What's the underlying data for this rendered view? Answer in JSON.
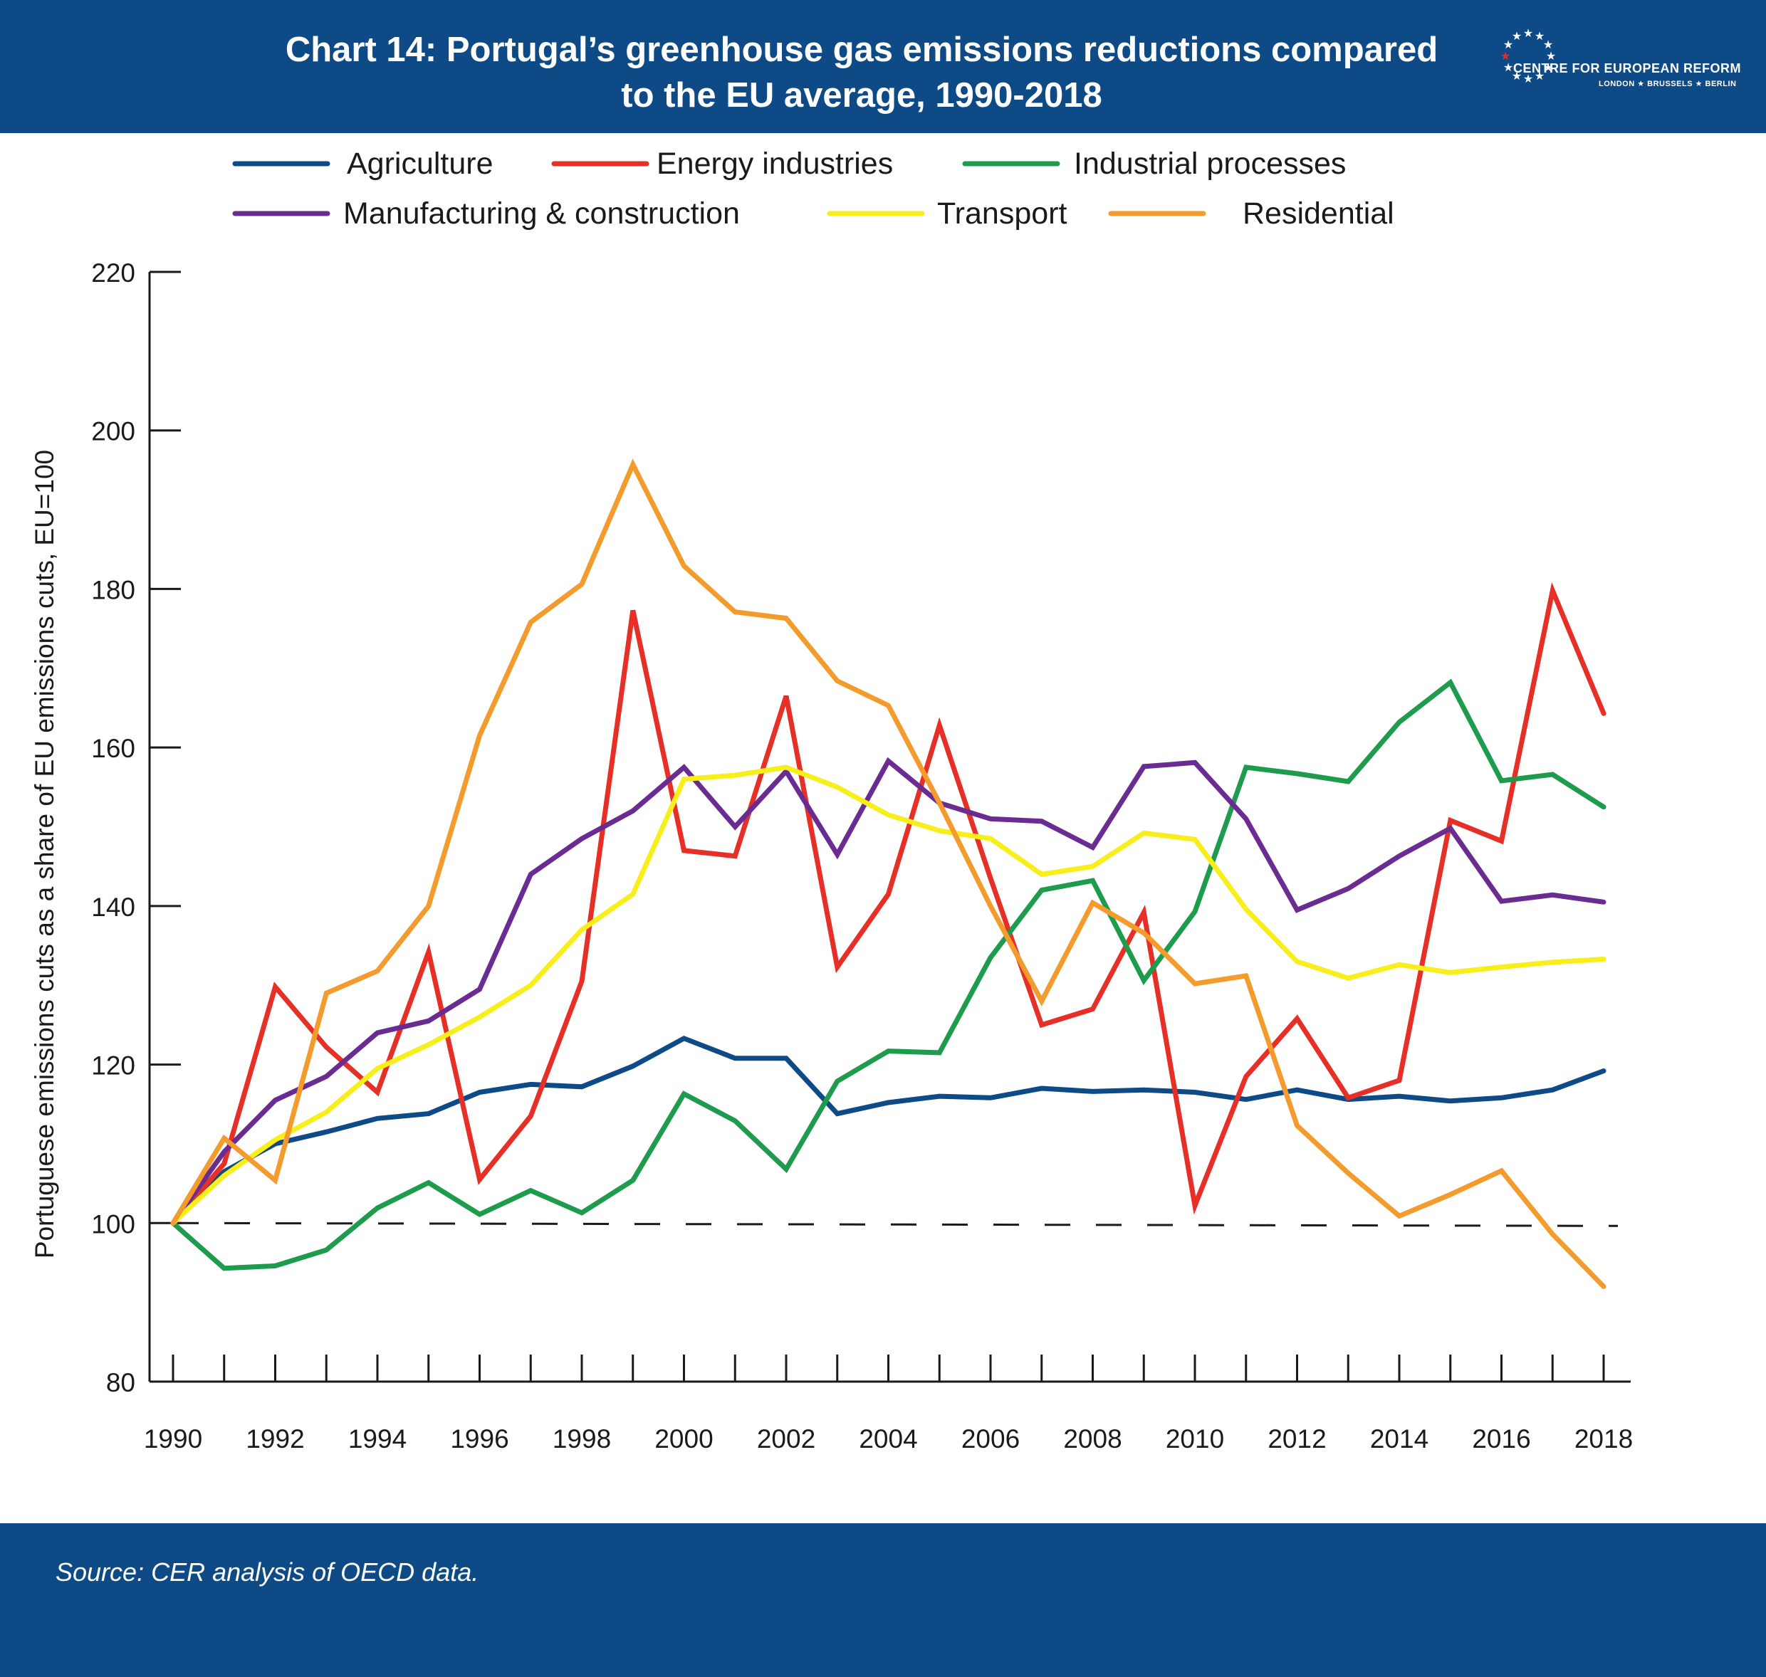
{
  "header": {
    "title_line1": "Chart 14: Portugal’s greenhouse gas emissions reductions compared",
    "title_line2": "to the EU average, 1990-2018",
    "logo_name": "CENTRE FOR EUROPEAN REFORM",
    "logo_cities": "LONDON ★ BRUSSELS ★ BERLIN",
    "color": "#0e4a86"
  },
  "footer": {
    "source": "Source: CER analysis of OECD data."
  },
  "chart_data": {
    "type": "line",
    "title": "Chart 14: Portugal’s greenhouse gas emissions reductions compared to the EU average, 1990-2018",
    "xlabel": "",
    "ylabel": "Portuguese emissions cuts as a share of EU emissions cuts, EU=100",
    "xlim": [
      1990,
      2018
    ],
    "ylim": [
      80,
      220
    ],
    "yticks": [
      80,
      100,
      120,
      140,
      160,
      180,
      200,
      220
    ],
    "xticks": [
      1990,
      1992,
      1994,
      1996,
      1998,
      2000,
      2002,
      2004,
      2006,
      2008,
      2010,
      2012,
      2014,
      2016,
      2018
    ],
    "grid": false,
    "legend_position": "top",
    "reference_line": {
      "y": 100,
      "style": "dashed"
    },
    "x": [
      1990,
      1991,
      1992,
      1993,
      1994,
      1995,
      1996,
      1997,
      1998,
      1999,
      2000,
      2001,
      2002,
      2003,
      2004,
      2005,
      2006,
      2007,
      2008,
      2009,
      2010,
      2011,
      2012,
      2013,
      2014,
      2015,
      2016,
      2017,
      2018
    ],
    "series": [
      {
        "name": "Agriculture",
        "color": "#0e4a86",
        "values": [
          100,
          106.5,
          110,
          111.5,
          113.2,
          113.8,
          116.5,
          117.5,
          117.2,
          119.8,
          123.3,
          120.8,
          120.8,
          113.8,
          115.2,
          116,
          115.8,
          117,
          116.6,
          116.8,
          116.5,
          115.6,
          116.8,
          115.6,
          116,
          115.4,
          115.8,
          116.8,
          119.2
        ]
      },
      {
        "name": "Energy industries",
        "color": "#e63027",
        "values": [
          100,
          107.5,
          129.8,
          122.2,
          116.5,
          134.2,
          105.5,
          113.5,
          130.5,
          177.3,
          147,
          146.3,
          166.5,
          132.3,
          141.5,
          162.8,
          143.5,
          125,
          127,
          139.2,
          102.2,
          118.5,
          125.8,
          115.8,
          118,
          150.8,
          148.2,
          179.8,
          164.3
        ]
      },
      {
        "name": "Industrial processes",
        "color": "#1e9b4d",
        "values": [
          100,
          94.3,
          94.6,
          96.6,
          101.9,
          105.1,
          101.1,
          104.1,
          101.3,
          105.4,
          116.3,
          112.9,
          106.8,
          117.9,
          121.7,
          121.5,
          133.5,
          142,
          143.2,
          130.6,
          139.3,
          157.5,
          156.7,
          155.7,
          163.2,
          168.2,
          155.8,
          156.6,
          152.5
        ]
      },
      {
        "name": "Manufacturing & construction",
        "color": "#6b2c91",
        "values": [
          100,
          109,
          115.5,
          118.5,
          124,
          125.5,
          129.5,
          144,
          148.5,
          152,
          157.5,
          150,
          157,
          146.5,
          158.3,
          153,
          151,
          150.7,
          147.4,
          157.6,
          158.1,
          151,
          139.5,
          142.2,
          146.3,
          149.8,
          140.6,
          141.4,
          140.5
        ]
      },
      {
        "name": "Transport",
        "color": "#f7ee1c",
        "values": [
          100,
          106,
          110.5,
          114,
          119.5,
          122.5,
          126,
          130,
          137,
          141.5,
          156,
          156.5,
          157.5,
          155,
          151.5,
          149.5,
          148.5,
          144,
          145,
          149.2,
          148.4,
          139.6,
          133,
          130.9,
          132.6,
          131.6,
          132.3,
          132.9,
          133.3
        ]
      },
      {
        "name": "Residential",
        "color": "#f39b2d",
        "values": [
          100,
          110.7,
          105.4,
          129,
          131.8,
          140,
          161.5,
          175.8,
          180.6,
          195.7,
          182.9,
          177.1,
          176.3,
          168.4,
          165.3,
          153,
          140,
          128,
          140.4,
          136.6,
          130.2,
          131.2,
          112.3,
          106.3,
          100.9,
          103.6,
          106.6,
          98.6,
          92
        ]
      }
    ]
  }
}
